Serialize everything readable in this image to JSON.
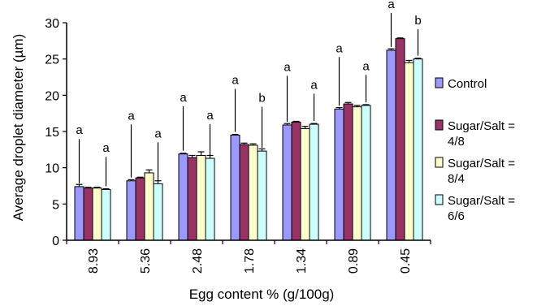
{
  "chart_data": {
    "type": "bar",
    "xlabel": "Egg content % (g/100g)",
    "ylabel": "Average droplet diameter (µm)",
    "ylim": [
      0,
      30
    ],
    "yticks": [
      "0",
      "5",
      "10",
      "15",
      "20",
      "25",
      "30"
    ],
    "categories": [
      "8.93",
      "5.36",
      "2.48",
      "1.78",
      "1.34",
      "0.89",
      "0.45"
    ],
    "series": [
      {
        "name": "Control",
        "color": "#9999ff",
        "values": [
          7.4,
          8.2,
          11.9,
          14.5,
          15.9,
          18.1,
          26.2
        ],
        "errors": [
          0.3,
          0.15,
          0.1,
          0.1,
          0.2,
          0.2,
          0.2
        ]
      },
      {
        "name": "Sugar/Salt = 4/8",
        "color": "#993366",
        "values": [
          7.2,
          8.6,
          11.4,
          13.2,
          16.3,
          18.8,
          27.8
        ],
        "errors": [
          0.1,
          0.1,
          0.3,
          0.2,
          0.1,
          0.2,
          0.1
        ]
      },
      {
        "name": "Sugar/Salt = 8/4",
        "color": "#ffffcc",
        "values": [
          7.2,
          9.3,
          11.7,
          13.1,
          15.4,
          18.4,
          24.5
        ],
        "errors": [
          0.1,
          0.4,
          0.5,
          0.2,
          0.3,
          0.2,
          0.3
        ]
      },
      {
        "name": "Sugar/Salt = 6/6",
        "color": "#ccffff",
        "values": [
          7.0,
          7.8,
          11.3,
          12.3,
          16.0,
          18.6,
          25.0
        ],
        "errors": [
          0.1,
          0.4,
          0.4,
          0.3,
          0.1,
          0.1,
          0.1
        ]
      }
    ],
    "legend_position": "right",
    "legend_lines": [
      [
        "Control"
      ],
      [
        "Sugar/Salt =",
        "4/8"
      ],
      [
        "Sugar/Salt =",
        "8/4"
      ],
      [
        "Sugar/Salt =",
        "6/6"
      ]
    ],
    "significance_labels": [
      {
        "category": "8.93",
        "left": "a",
        "right": "a"
      },
      {
        "category": "5.36",
        "left": "a",
        "right": "a"
      },
      {
        "category": "2.48",
        "left": "a",
        "right": "a"
      },
      {
        "category": "1.78",
        "left": "a",
        "right": "b"
      },
      {
        "category": "1.34",
        "left": "a",
        "right": "a"
      },
      {
        "category": "0.89",
        "left": "a",
        "right": "a"
      },
      {
        "category": "0.45",
        "left": "a",
        "right": "b"
      }
    ]
  }
}
